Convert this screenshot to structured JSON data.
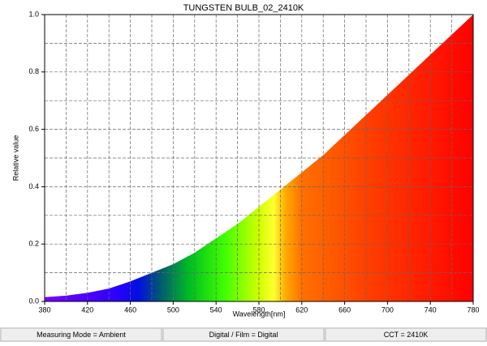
{
  "chart_data": {
    "type": "area",
    "title": "TUNGSTEN BULB_02_2410K",
    "x_label": "Wavelength[nm]",
    "y_label": "Relative value",
    "x": [
      380,
      400,
      420,
      440,
      460,
      480,
      500,
      520,
      540,
      560,
      580,
      600,
      620,
      640,
      660,
      680,
      700,
      720,
      740,
      760,
      780
    ],
    "values": [
      0.015,
      0.02,
      0.03,
      0.045,
      0.07,
      0.1,
      0.13,
      0.17,
      0.22,
      0.27,
      0.33,
      0.39,
      0.45,
      0.51,
      0.58,
      0.65,
      0.72,
      0.79,
      0.86,
      0.93,
      1.0
    ],
    "xlim": [
      380,
      780
    ],
    "ylim": [
      0,
      1
    ],
    "xticks": [
      380,
      420,
      460,
      500,
      540,
      580,
      620,
      660,
      700,
      740,
      780
    ],
    "yticks": [
      {
        "value": 0,
        "label": "0.0"
      },
      0.2,
      0.4,
      0.6,
      0.8,
      {
        "value": 1,
        "label": "1.0"
      }
    ],
    "x_grid": [
      400,
      420,
      440,
      460,
      480,
      500,
      520,
      540,
      560,
      580,
      600,
      620,
      640,
      660,
      680,
      700,
      720,
      740,
      760
    ],
    "y_grid": [
      0.1,
      0.2,
      0.3,
      0.4,
      0.5,
      0.6,
      0.7,
      0.8,
      0.9
    ],
    "grid": true
  },
  "status_bar": [
    "Measuring Mode = Ambient",
    "Digital / Film = Digital",
    "CCT = 2410K"
  ]
}
